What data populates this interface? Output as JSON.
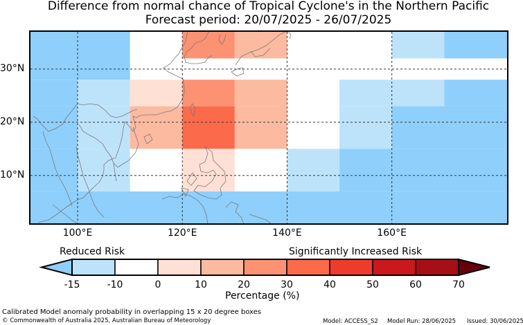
{
  "title": "Difference from normal chance of Tropical Cyclone's in the Northern Pacific",
  "subtitle": "Forecast period: 20/07/2025 - 26/07/2025",
  "map": {
    "lon_range": [
      91,
      182
    ],
    "lat_range": [
      1,
      37
    ],
    "lat_ticks": [
      {
        "value": 30,
        "label": "30°N"
      },
      {
        "value": 20,
        "label": "20°N"
      },
      {
        "value": 10,
        "label": "10°N"
      }
    ],
    "lon_ticks": [
      {
        "value": 100,
        "label": "100°E"
      },
      {
        "value": 120,
        "label": "120°E"
      },
      {
        "value": 140,
        "label": "140°E"
      },
      {
        "value": 160,
        "label": "160°E"
      }
    ],
    "grid": true,
    "cells_note": "anomaly cells by bin (lon0, lon1, lat0, lat1, bin)",
    "cells": [
      [
        91,
        110,
        28,
        37,
        "-15"
      ],
      [
        110,
        120,
        32,
        37,
        "0"
      ],
      [
        120,
        130,
        32,
        37,
        "30"
      ],
      [
        130,
        140,
        32,
        37,
        "20"
      ],
      [
        140,
        150,
        32,
        37,
        "0"
      ],
      [
        150,
        160,
        32,
        37,
        "0"
      ],
      [
        160,
        170,
        32,
        37,
        "-10"
      ],
      [
        170,
        182,
        32,
        37,
        "-15"
      ],
      [
        91,
        100,
        23,
        28,
        "-15"
      ],
      [
        100,
        110,
        23,
        28,
        "-10"
      ],
      [
        110,
        120,
        23,
        28,
        "10"
      ],
      [
        120,
        130,
        23,
        28,
        "30"
      ],
      [
        130,
        140,
        23,
        28,
        "20"
      ],
      [
        140,
        150,
        23,
        28,
        "0"
      ],
      [
        150,
        160,
        23,
        28,
        "-10"
      ],
      [
        160,
        170,
        23,
        28,
        "-10"
      ],
      [
        170,
        182,
        23,
        28,
        "-15"
      ],
      [
        91,
        100,
        15,
        23,
        "-15"
      ],
      [
        100,
        110,
        15,
        23,
        "-10"
      ],
      [
        110,
        120,
        15,
        23,
        "20"
      ],
      [
        120,
        130,
        15,
        23,
        "40"
      ],
      [
        130,
        140,
        15,
        23,
        "20"
      ],
      [
        140,
        150,
        15,
        23,
        "0"
      ],
      [
        150,
        160,
        15,
        23,
        "-10"
      ],
      [
        160,
        182,
        15,
        23,
        "-15"
      ],
      [
        91,
        100,
        7,
        15,
        "-15"
      ],
      [
        100,
        110,
        7,
        15,
        "-10"
      ],
      [
        110,
        120,
        7,
        15,
        "0"
      ],
      [
        120,
        130,
        7,
        15,
        "10"
      ],
      [
        130,
        140,
        7,
        15,
        "0"
      ],
      [
        140,
        150,
        7,
        15,
        "-10"
      ],
      [
        150,
        182,
        7,
        15,
        "-15"
      ],
      [
        91,
        182,
        1,
        7,
        "-15"
      ]
    ]
  },
  "colorbar": {
    "bins": [
      {
        "key": "-15",
        "color": "#bde3fb"
      },
      {
        "key": "-10",
        "color": "#ffffff"
      },
      {
        "key": "0",
        "color": "#fee1d4"
      },
      {
        "key": "10",
        "color": "#fcbaa0"
      },
      {
        "key": "20",
        "color": "#fc9271"
      },
      {
        "key": "30",
        "color": "#fb6a4a"
      },
      {
        "key": "40",
        "color": "#ef3b2c"
      },
      {
        "key": "50",
        "color": "#cb181d"
      },
      {
        "key": "60",
        "color": "#a50f15"
      }
    ],
    "under_color": "#8ecffc",
    "over_color": "#67000d",
    "tick_labels": [
      "-15",
      "-10",
      "0",
      "10",
      "20",
      "30",
      "40",
      "50",
      "60",
      "70"
    ],
    "label": "Percentage (%)",
    "left_caption": "Reduced Risk",
    "right_caption": "Significantly Increased Risk"
  },
  "footer": {
    "caption": "Calibrated Model anomaly probability in overlapping 15 x 20 degree boxes",
    "copyright": "© Commonwealth of Australia 2025, Australian Bureau of Meteorology",
    "model": "Model: ACCESS_S2",
    "model_run": "Model Run: 28/06/2025",
    "issued": "Issued: 30/06/2025"
  }
}
